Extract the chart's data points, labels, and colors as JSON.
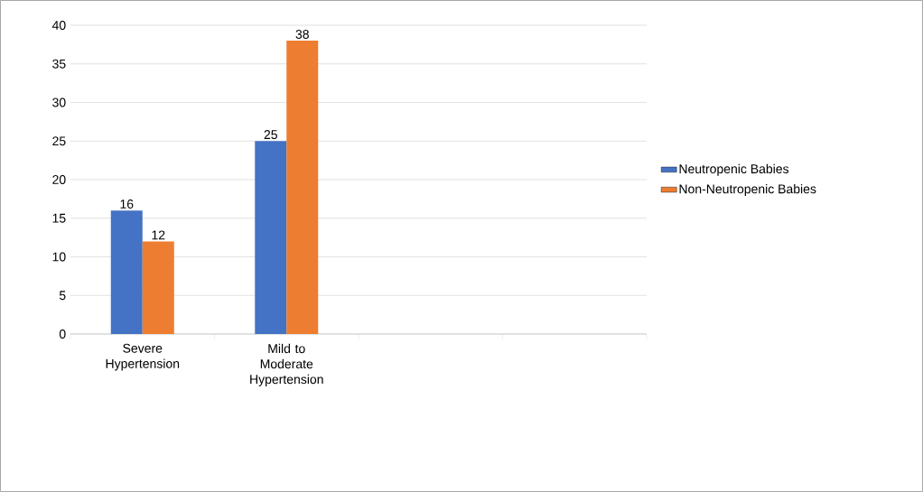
{
  "chart_data": {
    "type": "bar",
    "categories": [
      "Severe Hypertension",
      "Mild to Moderate Hypertension",
      null,
      null
    ],
    "series": [
      {
        "name": "Neutropenic Babies",
        "color": "#4472c4",
        "values": [
          16,
          25,
          null,
          null
        ]
      },
      {
        "name": "Non-Neutropenic Babies",
        "color": "#ed7d31",
        "values": [
          12,
          38,
          null,
          null
        ]
      }
    ],
    "ylim": [
      0,
      40
    ],
    "yticks": [
      0,
      5,
      10,
      15,
      20,
      25,
      30,
      35,
      40
    ],
    "grid": "y",
    "legend": "right",
    "data_labels": true
  }
}
